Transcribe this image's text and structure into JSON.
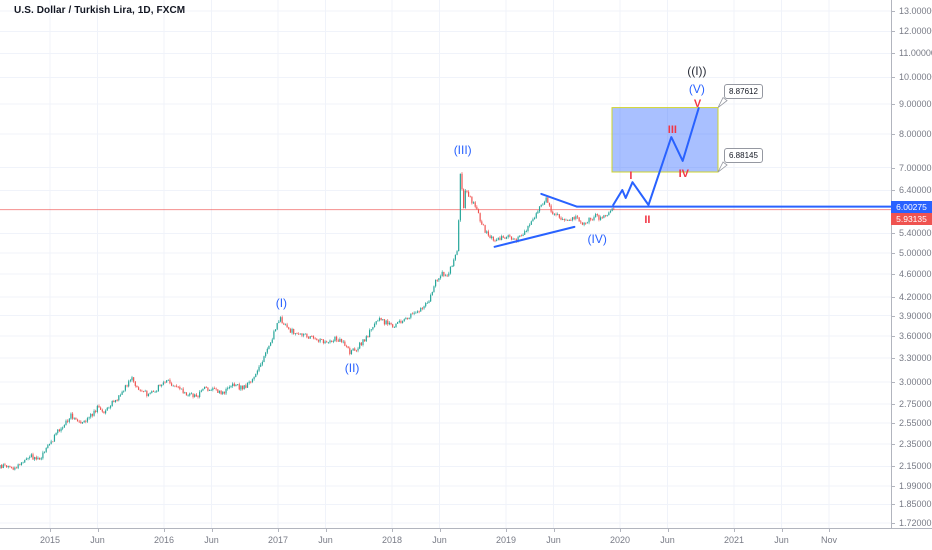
{
  "window": {
    "title": "U.S. Dollar / Turkish Lira, 1D, FXCM"
  },
  "colors": {
    "up": "#26a69a",
    "down": "#ef5350",
    "grid": "#f0f3fa",
    "axis_text": "#787b86",
    "axis_border": "#b2b5be",
    "drawing_blue": "#2962ff",
    "wave_red": "#f23645",
    "wave_dark": "#2a2e39",
    "price_line_red": "rgba(239,83,80,0.65)",
    "box_fill": "rgba(41,98,255,0.40)",
    "box_border": "#cfd42c",
    "badge_blue_bg": "#2962ff",
    "badge_red_bg": "#ef5350"
  },
  "price_axis": {
    "labels": [
      {
        "text": "13.00000",
        "p": 13.0
      },
      {
        "text": "12.00000",
        "p": 12.0
      },
      {
        "text": "11.00000",
        "p": 11.0
      },
      {
        "text": "10.00000",
        "p": 10.0
      },
      {
        "text": "9.00000",
        "p": 9.0
      },
      {
        "text": "8.00000",
        "p": 8.0
      },
      {
        "text": "7.00000",
        "p": 7.0
      },
      {
        "text": "6.40000",
        "p": 6.4
      },
      {
        "text": "5.40000",
        "p": 5.4
      },
      {
        "text": "5.00000",
        "p": 5.0
      },
      {
        "text": "4.60000",
        "p": 4.6
      },
      {
        "text": "4.20000",
        "p": 4.2
      },
      {
        "text": "3.90000",
        "p": 3.9
      },
      {
        "text": "3.60000",
        "p": 3.6
      },
      {
        "text": "3.30000",
        "p": 3.3
      },
      {
        "text": "3.00000",
        "p": 3.0
      },
      {
        "text": "2.75000",
        "p": 2.75
      },
      {
        "text": "2.55000",
        "p": 2.55
      },
      {
        "text": "2.35000",
        "p": 2.35
      },
      {
        "text": "2.15000",
        "p": 2.15
      },
      {
        "text": "1.99000",
        "p": 1.99
      },
      {
        "text": "1.85000",
        "p": 1.85
      },
      {
        "text": "1.72000",
        "p": 1.72
      }
    ]
  },
  "time_axis": {
    "labels": [
      {
        "text": "2015",
        "t": 2015.0
      },
      {
        "text": "Jun",
        "t": 2015.4167
      },
      {
        "text": "2016",
        "t": 2016.0
      },
      {
        "text": "Jun",
        "t": 2016.4167
      },
      {
        "text": "2017",
        "t": 2017.0
      },
      {
        "text": "Jun",
        "t": 2017.4167
      },
      {
        "text": "2018",
        "t": 2018.0
      },
      {
        "text": "Jun",
        "t": 2018.4167
      },
      {
        "text": "2019",
        "t": 2019.0
      },
      {
        "text": "Jun",
        "t": 2019.4167
      },
      {
        "text": "2020",
        "t": 2020.0
      },
      {
        "text": "Jun",
        "t": 2020.4167
      },
      {
        "text": "2021",
        "t": 2021.0
      },
      {
        "text": "Jun",
        "t": 2021.4167
      },
      {
        "text": "Nov",
        "t": 2021.8333
      }
    ]
  },
  "badges": [
    {
      "text": "6.00275",
      "p": 6.00275,
      "style": "blue"
    },
    {
      "text": "5.93135",
      "p": 5.93135,
      "style": "red"
    }
  ],
  "price_line": {
    "p": 5.93135
  },
  "chart_data": {
    "type": "candlestick",
    "title": "U.S. Dollar / Turkish Lira, 1D, FXCM",
    "symbol": "USD/TRY",
    "interval": "1D",
    "exchange": "FXCM",
    "scale": "logarithmic",
    "x_unit": "decimal_year",
    "x_visible_range": [
      2014.56,
      2021.93
    ],
    "y_visible_range": [
      1.72,
      13.2
    ],
    "grid": true,
    "path": [
      [
        2014.53,
        2.12
      ],
      [
        2014.62,
        2.16
      ],
      [
        2014.7,
        2.13
      ],
      [
        2014.83,
        2.24
      ],
      [
        2014.92,
        2.21
      ],
      [
        2015.0,
        2.33
      ],
      [
        2015.08,
        2.46
      ],
      [
        2015.2,
        2.63
      ],
      [
        2015.28,
        2.57
      ],
      [
        2015.35,
        2.6
      ],
      [
        2015.44,
        2.72
      ],
      [
        2015.5,
        2.66
      ],
      [
        2015.56,
        2.76
      ],
      [
        2015.62,
        2.84
      ],
      [
        2015.73,
        3.06
      ],
      [
        2015.8,
        2.89
      ],
      [
        2015.88,
        2.86
      ],
      [
        2015.95,
        2.92
      ],
      [
        2016.04,
        3.03
      ],
      [
        2016.12,
        2.94
      ],
      [
        2016.2,
        2.87
      ],
      [
        2016.3,
        2.83
      ],
      [
        2016.37,
        2.94
      ],
      [
        2016.45,
        2.9
      ],
      [
        2016.55,
        2.88
      ],
      [
        2016.62,
        2.96
      ],
      [
        2016.7,
        2.93
      ],
      [
        2016.78,
        3.0
      ],
      [
        2016.88,
        3.28
      ],
      [
        2016.95,
        3.52
      ],
      [
        2017.03,
        3.86
      ],
      [
        2017.1,
        3.7
      ],
      [
        2017.18,
        3.63
      ],
      [
        2017.27,
        3.6
      ],
      [
        2017.35,
        3.55
      ],
      [
        2017.45,
        3.52
      ],
      [
        2017.52,
        3.56
      ],
      [
        2017.58,
        3.5
      ],
      [
        2017.65,
        3.36
      ],
      [
        2017.73,
        3.47
      ],
      [
        2017.8,
        3.6
      ],
      [
        2017.88,
        3.85
      ],
      [
        2017.95,
        3.8
      ],
      [
        2018.03,
        3.76
      ],
      [
        2018.1,
        3.8
      ],
      [
        2018.18,
        3.92
      ],
      [
        2018.25,
        3.97
      ],
      [
        2018.33,
        4.1
      ],
      [
        2018.4,
        4.48
      ],
      [
        2018.45,
        4.62
      ],
      [
        2018.5,
        4.58
      ],
      [
        2018.55,
        4.78
      ],
      [
        2018.59,
        5.1
      ],
      [
        2018.615,
        6.9
      ],
      [
        2018.64,
        5.95
      ],
      [
        2018.66,
        6.4
      ],
      [
        2018.7,
        6.18
      ],
      [
        2018.75,
        6.02
      ],
      [
        2018.8,
        5.6
      ],
      [
        2018.85,
        5.38
      ],
      [
        2018.92,
        5.22
      ],
      [
        2018.97,
        5.3
      ],
      [
        2019.04,
        5.32
      ],
      [
        2019.1,
        5.26
      ],
      [
        2019.18,
        5.42
      ],
      [
        2019.25,
        5.68
      ],
      [
        2019.32,
        6.05
      ],
      [
        2019.37,
        6.18
      ],
      [
        2019.42,
        5.88
      ],
      [
        2019.48,
        5.78
      ],
      [
        2019.55,
        5.66
      ],
      [
        2019.62,
        5.74
      ],
      [
        2019.68,
        5.62
      ],
      [
        2019.74,
        5.7
      ],
      [
        2019.8,
        5.78
      ],
      [
        2019.85,
        5.7
      ],
      [
        2019.9,
        5.82
      ],
      [
        2019.96,
        5.93
      ],
      [
        2020.02,
        6.02
      ]
    ]
  },
  "drawings": {
    "rectangle": {
      "t1": 2019.93,
      "t2": 2020.86,
      "p_low": 6.88145,
      "p_high": 8.87612
    },
    "callouts": [
      {
        "text": "8.87612",
        "t": 2020.86,
        "p": 8.87612
      },
      {
        "text": "6.88145",
        "t": 2020.86,
        "p": 6.88145
      }
    ],
    "trendlines": [
      {
        "t1": 2018.9,
        "p1": 5.12,
        "t2": 2019.6,
        "p2": 5.54
      },
      {
        "t1": 2019.31,
        "p1": 6.31,
        "t2": 2019.62,
        "p2": 6.00275
      }
    ],
    "horizontal_ray": {
      "t": 2019.62,
      "p": 6.00275
    },
    "wave_line": [
      [
        2019.94,
        6.04
      ],
      [
        2020.02,
        6.41
      ],
      [
        2020.05,
        6.21
      ],
      [
        2020.11,
        6.61
      ],
      [
        2020.25,
        6.04
      ],
      [
        2020.45,
        7.9
      ],
      [
        2020.55,
        7.19
      ],
      [
        2020.69,
        8.86
      ]
    ],
    "wave_labels": [
      {
        "text": "(I)",
        "t": 2017.03,
        "p": 4.1,
        "style": "blue"
      },
      {
        "text": "(II)",
        "t": 2017.65,
        "p": 3.17,
        "style": "blue"
      },
      {
        "text": "(III)",
        "t": 2018.62,
        "p": 7.51,
        "style": "blue"
      },
      {
        "text": "(IV)",
        "t": 2019.8,
        "p": 5.28,
        "style": "blue"
      },
      {
        "text": "(V)",
        "t": 2020.675,
        "p": 9.55,
        "style": "blue"
      },
      {
        "text": "((I))",
        "t": 2020.675,
        "p": 10.26,
        "style": "dark"
      },
      {
        "text": "I",
        "t": 2020.096,
        "p": 6.77,
        "style": "red"
      },
      {
        "text": "II",
        "t": 2020.24,
        "p": 5.69,
        "style": "red"
      },
      {
        "text": "III",
        "t": 2020.46,
        "p": 8.12,
        "style": "red"
      },
      {
        "text": "IV",
        "t": 2020.56,
        "p": 6.83,
        "style": "red"
      },
      {
        "text": "V",
        "t": 2020.68,
        "p": 9.0,
        "style": "red"
      }
    ]
  }
}
